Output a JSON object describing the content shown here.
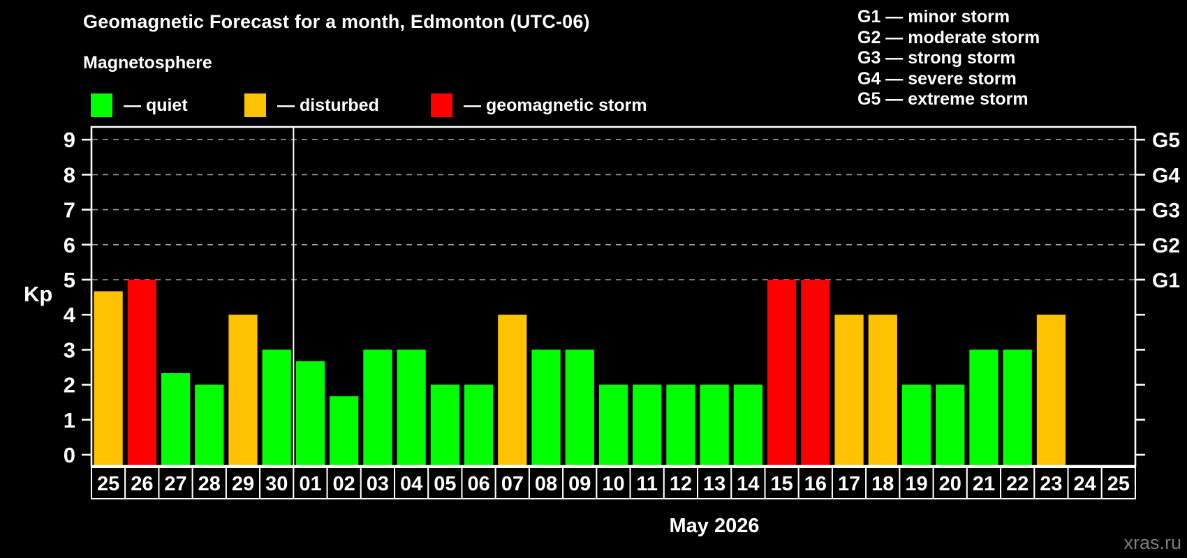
{
  "header": {
    "title": "Geomagnetic Forecast for a month, Edmonton (UTC-06)",
    "subtitle": "Magnetosphere",
    "watermark": "xras.ru"
  },
  "legend": {
    "items": [
      {
        "label": "— quiet",
        "status": "quiet",
        "color": "#00ff00"
      },
      {
        "label": "— disturbed",
        "status": "disturbed",
        "color": "#ffc200"
      },
      {
        "label": "— geomagnetic storm",
        "status": "storm",
        "color": "#ff0000"
      }
    ]
  },
  "g_legend": {
    "items": [
      {
        "label": "G1 — minor storm"
      },
      {
        "label": "G2 — moderate storm"
      },
      {
        "label": "G3 — strong storm"
      },
      {
        "label": "G4 — severe storm"
      },
      {
        "label": "G5 — extreme storm"
      }
    ]
  },
  "chart_data": {
    "type": "bar",
    "title": "Geomagnetic Forecast for a month, Edmonton (UTC-06)",
    "xlabel": "May 2026",
    "ylabel": "Kp",
    "ylim": [
      0,
      9
    ],
    "yticks": [
      0,
      1,
      2,
      3,
      4,
      5,
      6,
      7,
      8,
      9
    ],
    "grid": "dashed horizontal lines at Kp 5-9 (G1-G5)",
    "gridline_values": [
      5,
      6,
      7,
      8,
      9
    ],
    "legend_position": "top-left",
    "right_axis": {
      "ticks": [
        0,
        1,
        2,
        3,
        4,
        5,
        6,
        7,
        8,
        9
      ],
      "labels": {
        "5": "G1",
        "6": "G2",
        "7": "G3",
        "8": "G4",
        "9": "G5"
      }
    },
    "month_separator_after_index": 5,
    "categories": [
      "25",
      "26",
      "27",
      "28",
      "29",
      "30",
      "01",
      "02",
      "03",
      "04",
      "05",
      "06",
      "07",
      "08",
      "09",
      "10",
      "11",
      "12",
      "13",
      "14",
      "15",
      "16",
      "17",
      "18",
      "19",
      "20",
      "21",
      "22",
      "23",
      "24",
      "25"
    ],
    "values": [
      4.67,
      5,
      2.33,
      2,
      4,
      3,
      2.67,
      1.67,
      3,
      3,
      2,
      2,
      4,
      3,
      3,
      2,
      2,
      2,
      2,
      2,
      5,
      5,
      4,
      4,
      2,
      2,
      3,
      3,
      4,
      null,
      null
    ],
    "statuses": [
      "disturbed",
      "storm",
      "quiet",
      "quiet",
      "disturbed",
      "quiet",
      "quiet",
      "quiet",
      "quiet",
      "quiet",
      "quiet",
      "quiet",
      "disturbed",
      "quiet",
      "quiet",
      "quiet",
      "quiet",
      "quiet",
      "quiet",
      "quiet",
      "storm",
      "storm",
      "disturbed",
      "disturbed",
      "quiet",
      "quiet",
      "quiet",
      "quiet",
      "disturbed",
      null,
      null
    ],
    "colors": {
      "quiet": "#00ff00",
      "disturbed": "#ffc200",
      "storm": "#ff0000"
    },
    "axis_color": "#ffffff",
    "grid_color": "#a0a0a0"
  }
}
